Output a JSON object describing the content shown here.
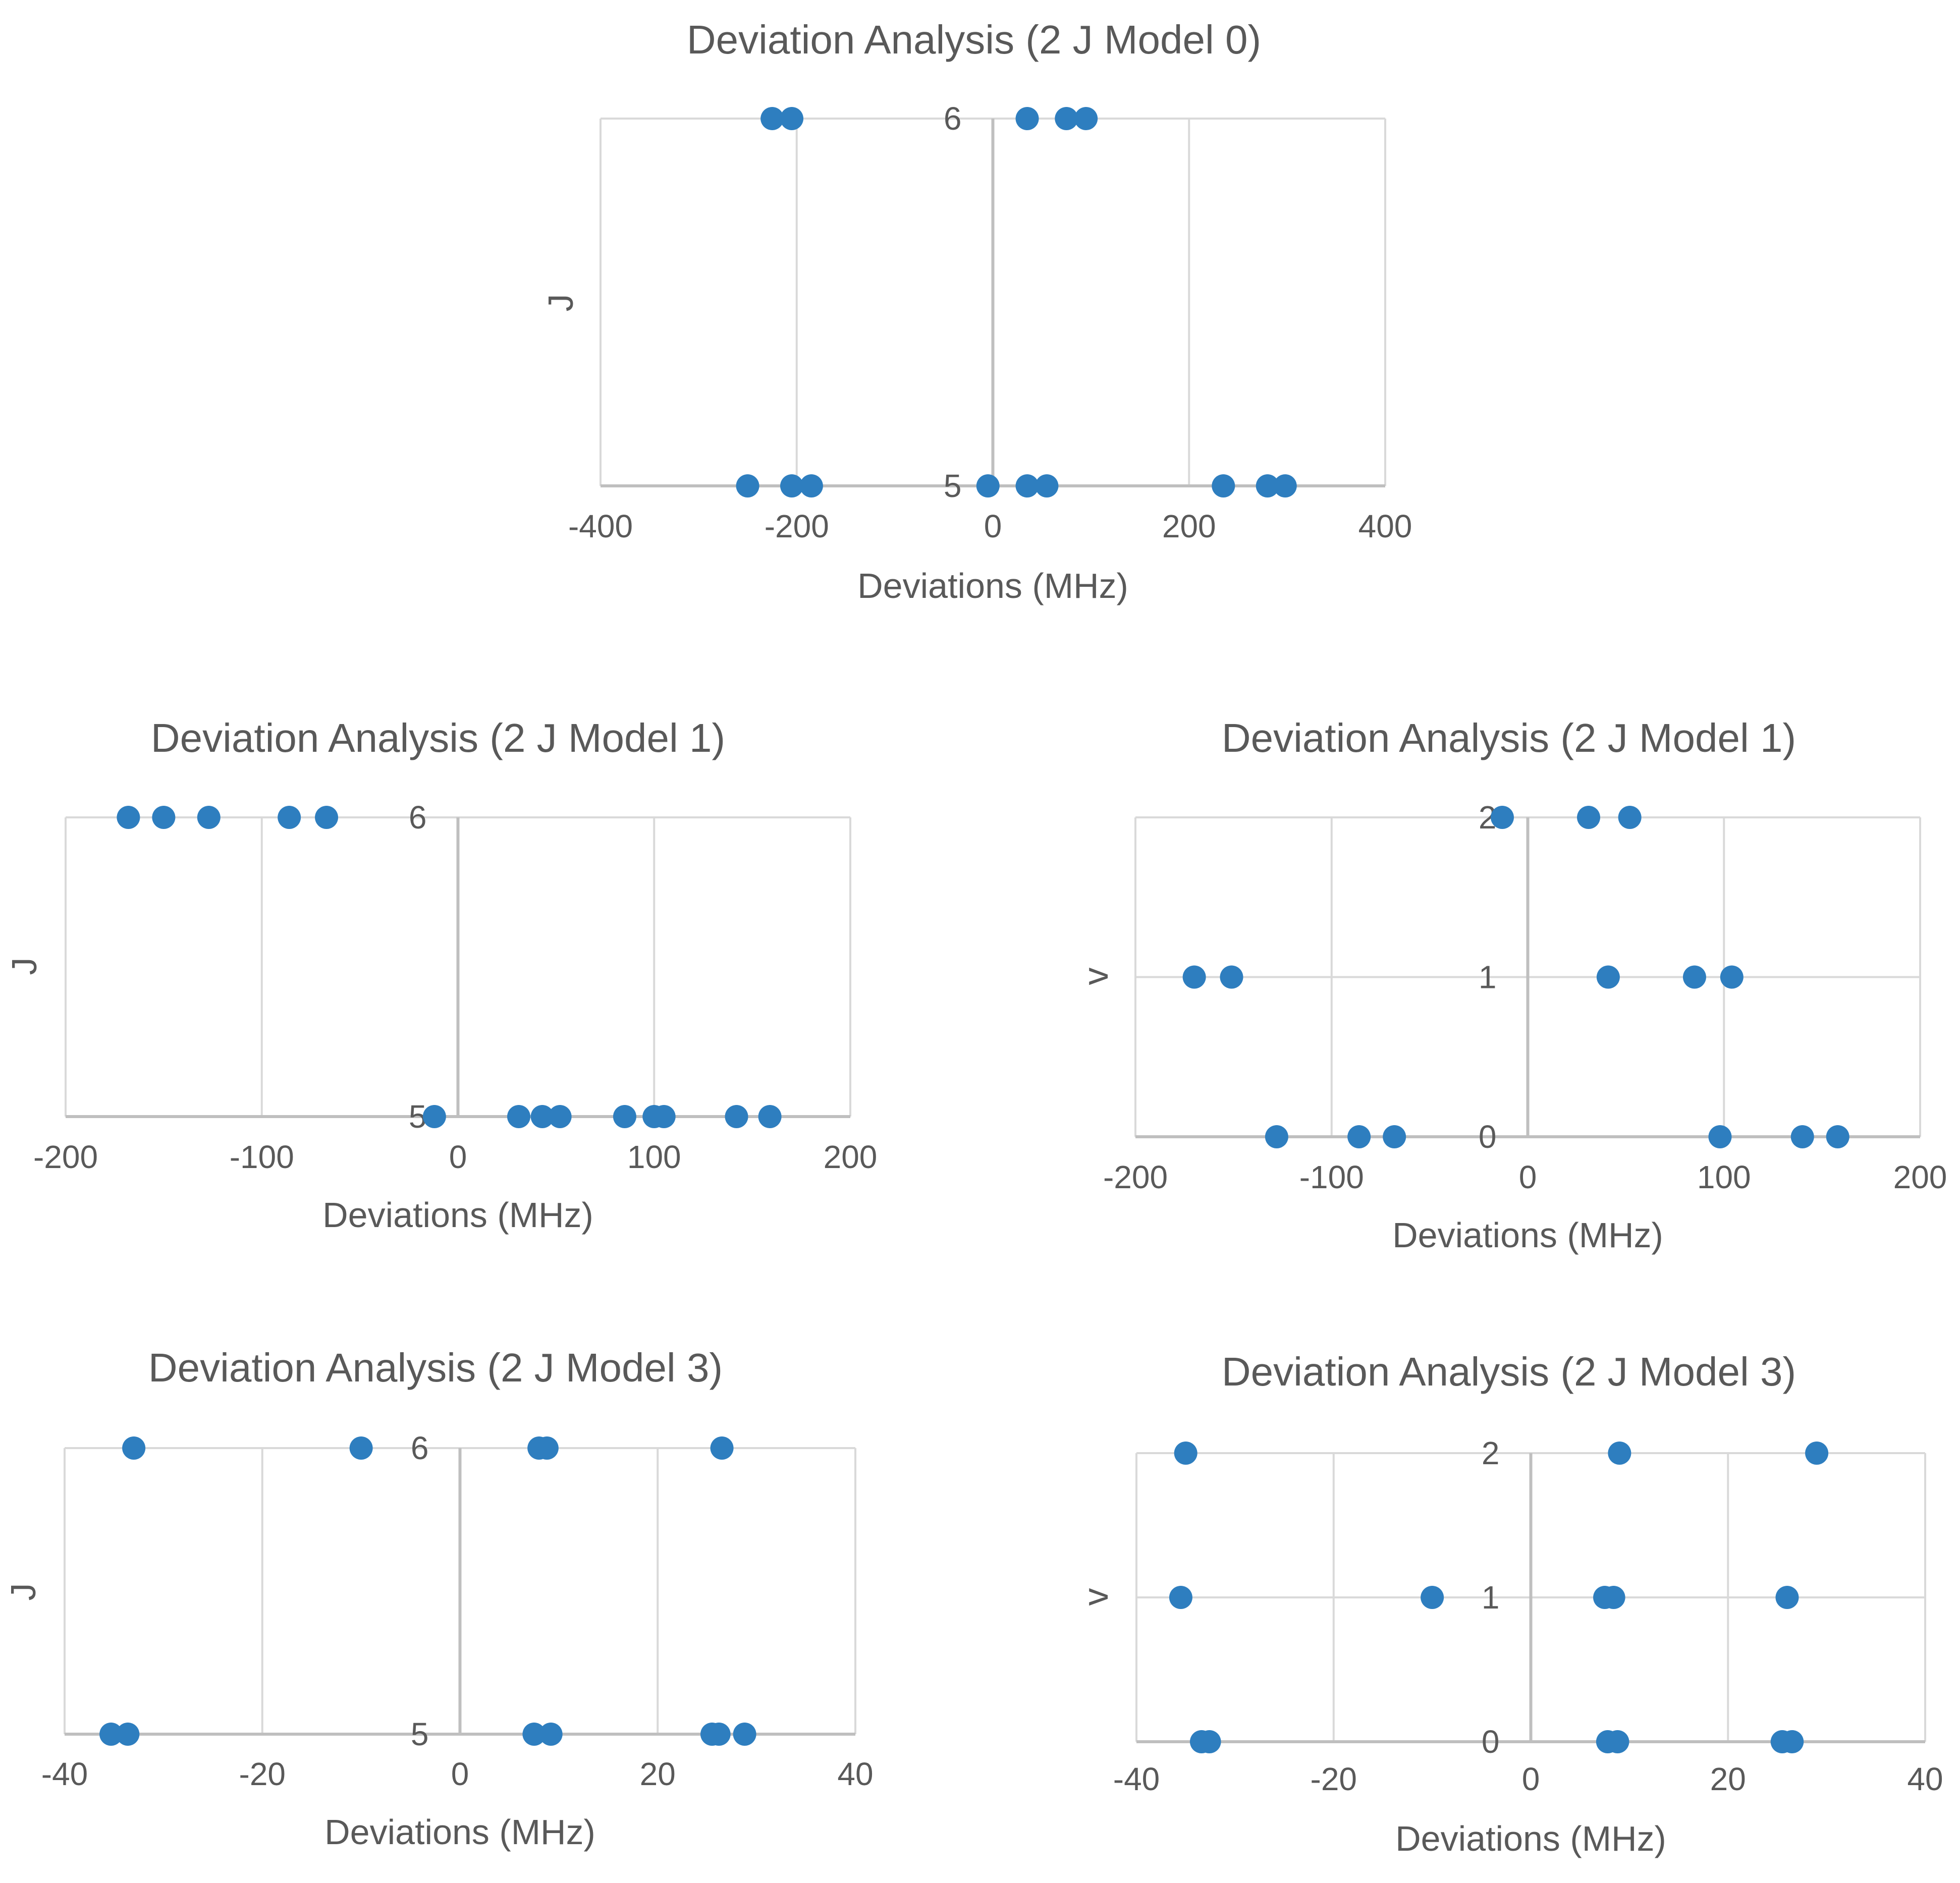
{
  "chart_data": [
    {
      "type": "scatter",
      "title": "Deviation Analysis (2 J Model 0)",
      "xlabel": "Deviations (MHz)",
      "ylabel": "J",
      "xlim": [
        -400,
        400
      ],
      "xticks": [
        -400,
        -200,
        0,
        200,
        400
      ],
      "ylim": [
        5,
        6
      ],
      "yticks": [
        5,
        6
      ],
      "series": [
        {
          "name": "Deviations",
          "points": [
            [
              -225,
              6
            ],
            [
              -205,
              6
            ],
            [
              35,
              6
            ],
            [
              75,
              6
            ],
            [
              95,
              6
            ],
            [
              -250,
              5
            ],
            [
              -205,
              5
            ],
            [
              -185,
              5
            ],
            [
              -5,
              5
            ],
            [
              35,
              5
            ],
            [
              55,
              5
            ],
            [
              235,
              5
            ],
            [
              280,
              5
            ],
            [
              298,
              5
            ]
          ]
        }
      ]
    },
    {
      "type": "scatter",
      "title": "Deviation Analysis (2 J Model 1)",
      "xlabel": "Deviations (MHz)",
      "ylabel": "J",
      "xlim": [
        -200,
        200
      ],
      "xticks": [
        -200,
        -100,
        0,
        100,
        200
      ],
      "ylim": [
        5,
        6
      ],
      "yticks": [
        5,
        6
      ],
      "series": [
        {
          "name": "Deviations",
          "points": [
            [
              -168,
              6
            ],
            [
              -150,
              6
            ],
            [
              -127,
              6
            ],
            [
              -86,
              6
            ],
            [
              -67,
              6
            ],
            [
              -12,
              5
            ],
            [
              31,
              5
            ],
            [
              43,
              5
            ],
            [
              52,
              5
            ],
            [
              85,
              5
            ],
            [
              100,
              5
            ],
            [
              105,
              5
            ],
            [
              142,
              5
            ],
            [
              159,
              5
            ]
          ]
        }
      ]
    },
    {
      "type": "scatter",
      "title": "Deviation Analysis (2 J Model 1)",
      "xlabel": "Deviations (MHz)",
      "ylabel": "v",
      "xlim": [
        -200,
        200
      ],
      "xticks": [
        -200,
        -100,
        0,
        100,
        200
      ],
      "ylim": [
        0,
        2
      ],
      "yticks": [
        0,
        1,
        2
      ],
      "series": [
        {
          "name": "Deviations",
          "points": [
            [
              -13,
              2
            ],
            [
              31,
              2
            ],
            [
              52,
              2
            ],
            [
              -170,
              1
            ],
            [
              -151,
              1
            ],
            [
              41,
              1
            ],
            [
              85,
              1
            ],
            [
              104,
              1
            ],
            [
              -128,
              0
            ],
            [
              -86,
              0
            ],
            [
              -68,
              0
            ],
            [
              98,
              0
            ],
            [
              140,
              0
            ],
            [
              158,
              0
            ]
          ]
        }
      ]
    },
    {
      "type": "scatter",
      "title": "Deviation Analysis (2 J Model 3)",
      "xlabel": "Deviations (MHz)",
      "ylabel": "J",
      "xlim": [
        -40,
        40
      ],
      "xticks": [
        -40,
        -20,
        0,
        20,
        40
      ],
      "ylim": [
        5,
        6
      ],
      "yticks": [
        5,
        6
      ],
      "series": [
        {
          "name": "Deviations",
          "points": [
            [
              -33,
              6
            ],
            [
              -10,
              6
            ],
            [
              8,
              6
            ],
            [
              8.8,
              6
            ],
            [
              26.5,
              6
            ],
            [
              -35.3,
              5
            ],
            [
              -33.6,
              5
            ],
            [
              7.5,
              5
            ],
            [
              9.2,
              5
            ],
            [
              25.5,
              5
            ],
            [
              26.2,
              5
            ],
            [
              28.8,
              5
            ]
          ]
        }
      ]
    },
    {
      "type": "scatter",
      "title": "Deviation Analysis (2 J Model 3)",
      "xlabel": "Deviations (MHz)",
      "ylabel": "v",
      "xlim": [
        -40,
        40
      ],
      "xticks": [
        -40,
        -20,
        0,
        20,
        40
      ],
      "ylim": [
        0,
        2
      ],
      "yticks": [
        0,
        1,
        2
      ],
      "series": [
        {
          "name": "Deviations",
          "points": [
            [
              -35,
              2
            ],
            [
              9,
              2
            ],
            [
              29,
              2
            ],
            [
              -35.5,
              1
            ],
            [
              -10,
              1
            ],
            [
              7.5,
              1
            ],
            [
              8.4,
              1
            ],
            [
              26,
              1
            ],
            [
              -33.4,
              0
            ],
            [
              -32.6,
              0
            ],
            [
              7.8,
              0
            ],
            [
              8.8,
              0
            ],
            [
              25.5,
              0
            ],
            [
              26.5,
              0
            ]
          ]
        }
      ]
    }
  ],
  "colors": {
    "marker": "#2e7ebf",
    "grid": "#d9d9d9",
    "zero_line": "#bfbfbf",
    "text": "#595959"
  }
}
